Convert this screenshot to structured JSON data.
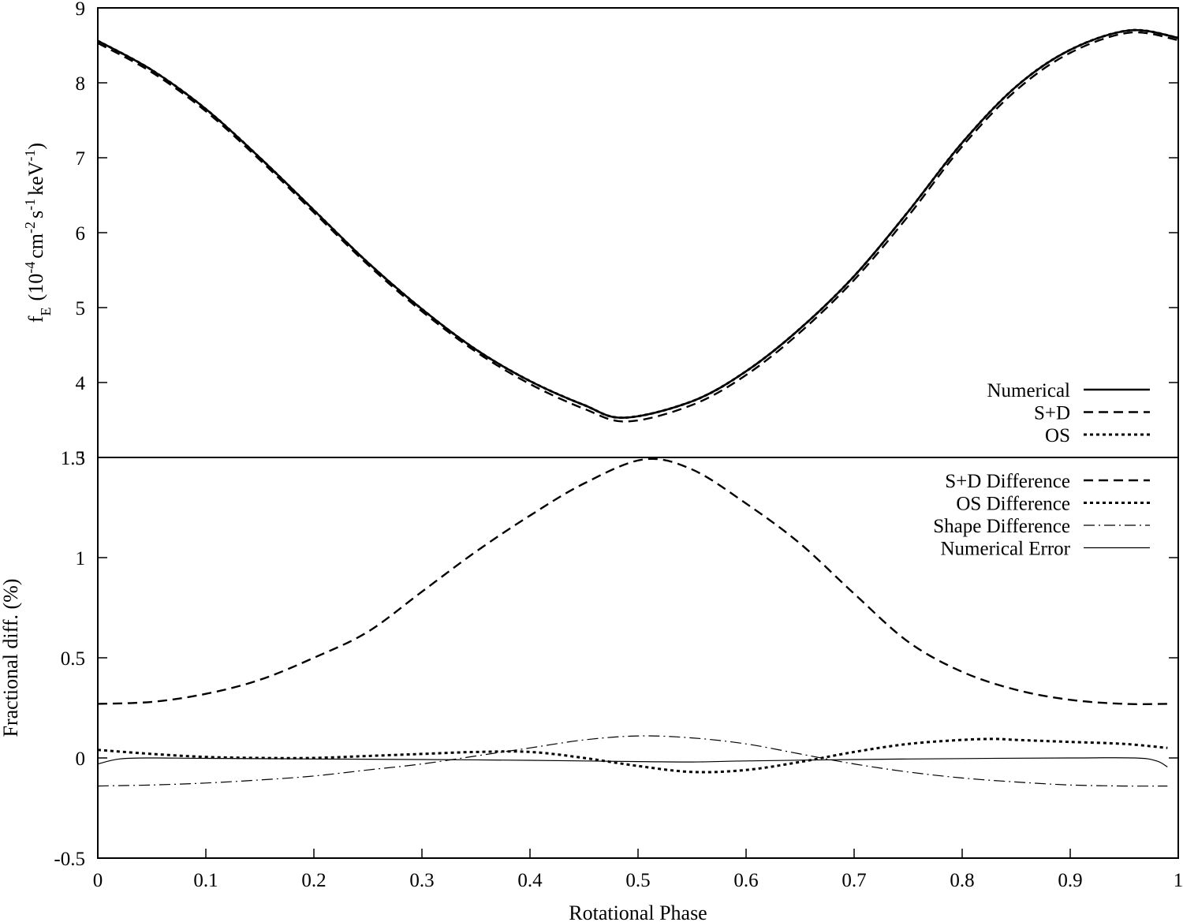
{
  "chart_data": [
    {
      "type": "line",
      "panel": "top",
      "title": "",
      "xlabel": "",
      "ylabel_main": "f",
      "ylabel_sub": "E",
      "ylabel_open": "(10",
      "ylabel_exp1": "-4",
      "ylabel_cm": "cm",
      "ylabel_exp2": "-2",
      "ylabel_s": "s",
      "ylabel_exp3": "-1",
      "ylabel_kev": "keV",
      "ylabel_exp4": "-1",
      "ylabel_close": ")",
      "xlim": [
        0,
        1
      ],
      "ylim": [
        3,
        9
      ],
      "yticks": [
        "3",
        "4",
        "5",
        "6",
        "7",
        "8",
        "9"
      ],
      "legend_position": "bottom-right",
      "series": [
        {
          "name": "Numerical",
          "style": "solid",
          "x": [
            0,
            0.05,
            0.1,
            0.15,
            0.2,
            0.25,
            0.3,
            0.35,
            0.4,
            0.45,
            0.487,
            0.55,
            0.6,
            0.65,
            0.7,
            0.75,
            0.8,
            0.85,
            0.9,
            0.955,
            1.0
          ],
          "y": [
            8.56,
            8.17,
            7.65,
            7.0,
            6.3,
            5.6,
            4.98,
            4.44,
            4.02,
            3.7,
            3.53,
            3.75,
            4.15,
            4.72,
            5.42,
            6.28,
            7.2,
            7.95,
            8.44,
            8.7,
            8.6
          ]
        },
        {
          "name": "S+D",
          "style": "dashed",
          "x": [
            0,
            0.05,
            0.1,
            0.15,
            0.2,
            0.25,
            0.3,
            0.35,
            0.4,
            0.45,
            0.49,
            0.55,
            0.6,
            0.65,
            0.7,
            0.75,
            0.8,
            0.85,
            0.9,
            0.955,
            1.0
          ],
          "y": [
            8.53,
            8.14,
            7.62,
            6.97,
            6.27,
            5.57,
            4.95,
            4.41,
            3.98,
            3.65,
            3.48,
            3.7,
            4.1,
            4.67,
            5.37,
            6.22,
            7.15,
            7.9,
            8.4,
            8.67,
            8.57
          ]
        },
        {
          "name": "OS",
          "style": "dotted",
          "x": [
            0,
            0.05,
            0.1,
            0.15,
            0.2,
            0.25,
            0.3,
            0.35,
            0.4,
            0.45,
            0.487,
            0.55,
            0.6,
            0.65,
            0.7,
            0.75,
            0.8,
            0.85,
            0.9,
            0.955,
            1.0
          ],
          "y": [
            8.56,
            8.17,
            7.65,
            7.0,
            6.3,
            5.6,
            4.98,
            4.44,
            4.02,
            3.7,
            3.53,
            3.75,
            4.15,
            4.72,
            5.42,
            6.28,
            7.2,
            7.95,
            8.44,
            8.7,
            8.6
          ]
        }
      ]
    },
    {
      "type": "line",
      "panel": "bottom",
      "title": "",
      "xlabel": "Rotational Phase",
      "ylabel": "Fractional diff. (%)",
      "xlim": [
        0,
        1
      ],
      "ylim": [
        -0.5,
        1.5
      ],
      "xticks": [
        "0",
        "0.1",
        "0.2",
        "0.3",
        "0.4",
        "0.5",
        "0.6",
        "0.7",
        "0.8",
        "0.9",
        "1"
      ],
      "yticks": [
        "-0.5",
        "0",
        "0.5",
        "1",
        "1.5"
      ],
      "legend_position": "top-right",
      "series": [
        {
          "name": "S+D Difference",
          "style": "dashed",
          "x": [
            0,
            0.05,
            0.1,
            0.15,
            0.2,
            0.25,
            0.3,
            0.35,
            0.4,
            0.45,
            0.505,
            0.55,
            0.6,
            0.65,
            0.7,
            0.75,
            0.8,
            0.85,
            0.9,
            0.95,
            0.99
          ],
          "y": [
            0.27,
            0.28,
            0.32,
            0.39,
            0.5,
            0.63,
            0.83,
            1.03,
            1.21,
            1.37,
            1.49,
            1.44,
            1.27,
            1.07,
            0.82,
            0.58,
            0.43,
            0.34,
            0.29,
            0.27,
            0.27
          ]
        },
        {
          "name": "OS Difference",
          "style": "dotted",
          "x": [
            0,
            0.05,
            0.1,
            0.15,
            0.2,
            0.25,
            0.3,
            0.35,
            0.4,
            0.45,
            0.5,
            0.55,
            0.6,
            0.65,
            0.7,
            0.75,
            0.8,
            0.83,
            0.85,
            0.9,
            0.95,
            0.99
          ],
          "y": [
            0.04,
            0.02,
            0.005,
            0.0,
            0.0,
            0.01,
            0.02,
            0.03,
            0.03,
            0.0,
            -0.04,
            -0.07,
            -0.06,
            -0.02,
            0.03,
            0.07,
            0.09,
            0.095,
            0.09,
            0.08,
            0.07,
            0.05
          ]
        },
        {
          "name": "Shape Difference",
          "style": "dash-dot",
          "x": [
            0,
            0.05,
            0.1,
            0.15,
            0.2,
            0.25,
            0.3,
            0.35,
            0.4,
            0.45,
            0.5,
            0.55,
            0.6,
            0.65,
            0.7,
            0.75,
            0.8,
            0.85,
            0.9,
            0.95,
            0.99
          ],
          "y": [
            -0.14,
            -0.135,
            -0.125,
            -0.11,
            -0.09,
            -0.06,
            -0.03,
            0.01,
            0.05,
            0.09,
            0.11,
            0.1,
            0.07,
            0.02,
            -0.03,
            -0.07,
            -0.1,
            -0.12,
            -0.135,
            -0.14,
            -0.14
          ]
        },
        {
          "name": "Numerical Error",
          "style": "thin-solid",
          "x": [
            0,
            0.02,
            0.05,
            0.1,
            0.2,
            0.3,
            0.4,
            0.5,
            0.55,
            0.6,
            0.7,
            0.8,
            0.9,
            0.96,
            0.98,
            0.99
          ],
          "y": [
            -0.03,
            -0.005,
            0.0,
            -0.002,
            -0.005,
            -0.008,
            -0.012,
            -0.018,
            -0.02,
            -0.015,
            -0.008,
            -0.003,
            0.0,
            0.0,
            -0.015,
            -0.045
          ]
        }
      ]
    }
  ]
}
